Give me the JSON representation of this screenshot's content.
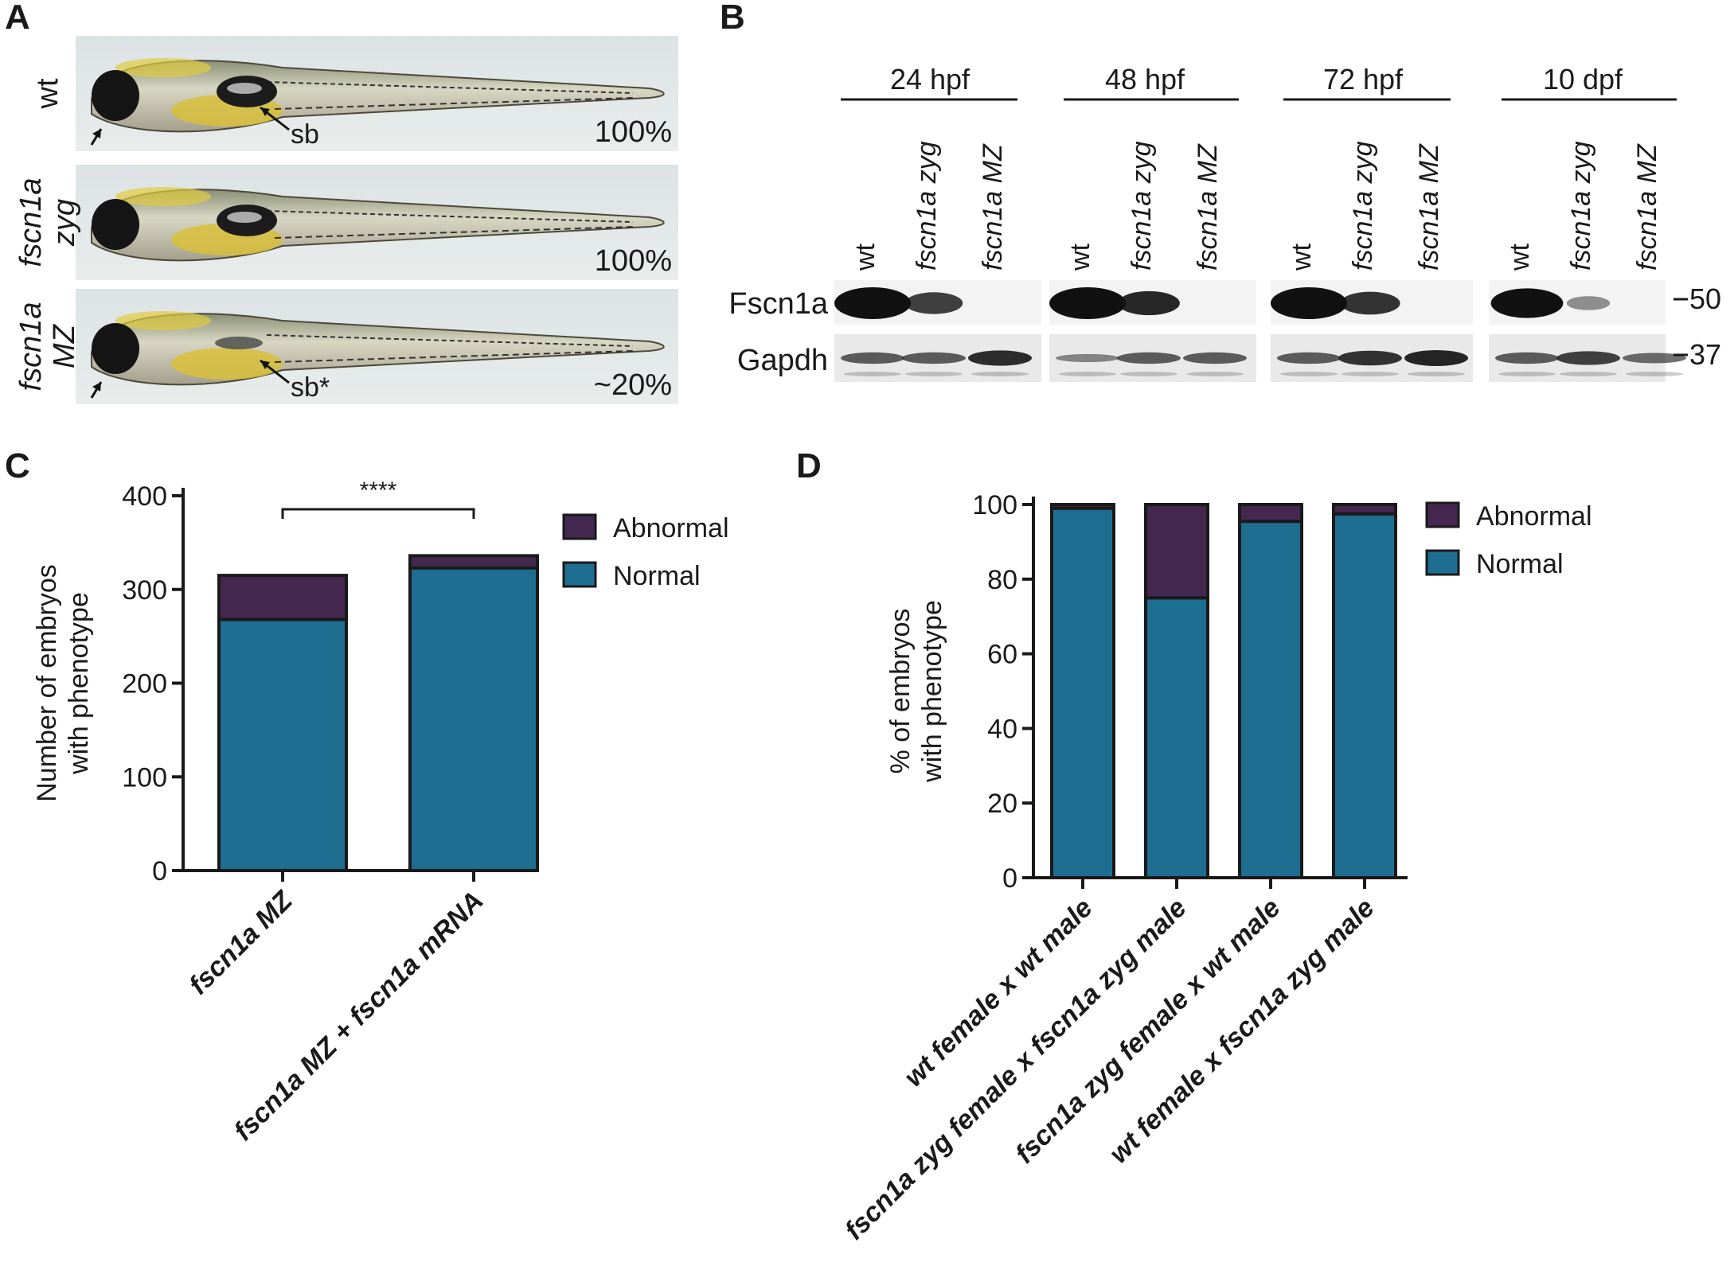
{
  "panels": {
    "a": "A",
    "b": "B",
    "c": "C",
    "d": "D"
  },
  "panel_a": {
    "rows": [
      {
        "genotype_lines": [
          "wt"
        ],
        "italic": false,
        "percent": "100%",
        "sb_label": "sb"
      },
      {
        "genotype_lines": [
          "fscn1a",
          "zyg"
        ],
        "italic": true,
        "percent": "100%",
        "sb_label": ""
      },
      {
        "genotype_lines": [
          "fscn1a",
          "MZ"
        ],
        "italic": true,
        "percent": "~20%",
        "sb_label": "sb*"
      }
    ]
  },
  "panel_b": {
    "timepoints": [
      "24 hpf",
      "48 hpf",
      "72 hpf",
      "10 dpf"
    ],
    "lanes": [
      "wt",
      "fscn1a zyg",
      "fscn1a MZ"
    ],
    "proteins": [
      "Fscn1a",
      "Gapdh"
    ],
    "markers": [
      "50",
      "37"
    ],
    "fscn1a_intensity": [
      [
        1.0,
        0.55,
        0.0
      ],
      [
        1.0,
        0.65,
        0.0
      ],
      [
        1.0,
        0.6,
        0.0
      ],
      [
        0.9,
        0.2,
        0.0
      ]
    ],
    "gapdh_intensity": [
      [
        0.6,
        0.6,
        0.95
      ],
      [
        0.3,
        0.6,
        0.6
      ],
      [
        0.6,
        0.9,
        1.0
      ],
      [
        0.6,
        0.8,
        0.5
      ]
    ]
  },
  "colors": {
    "normal": "#1e6e92",
    "abnormal": "#44284f",
    "axis": "#1a1a1a"
  },
  "chart_data": [
    {
      "panel": "C",
      "type": "bar",
      "stacked": true,
      "categories": [
        "fscn1a MZ",
        "fscn1a MZ + fscn1a mRNA"
      ],
      "series": [
        {
          "name": "Normal",
          "values": [
            268,
            323
          ]
        },
        {
          "name": "Abnormal",
          "values": [
            47,
            13
          ]
        }
      ],
      "ylabel_lines": [
        "Number of embryos",
        "with phenotype"
      ],
      "ylim": [
        0,
        400
      ],
      "yticks": [
        "0",
        "100",
        "200",
        "300",
        "400"
      ],
      "significance": "****",
      "legend": [
        "Abnormal",
        "Normal"
      ],
      "legend_position": "top-right"
    },
    {
      "panel": "D",
      "type": "bar",
      "stacked": true,
      "categories": [
        "wt female x wt male",
        "fscn1a zyg female x fscn1a zyg male",
        "fscn1a zyg female x wt male",
        "wt female x fscn1a zyg male"
      ],
      "series": [
        {
          "name": "Normal",
          "values": [
            99,
            75,
            95.5,
            97.5
          ]
        },
        {
          "name": "Abnormal",
          "values": [
            1,
            25,
            4.5,
            2.5
          ]
        }
      ],
      "ylabel_lines": [
        "% of embryos",
        "with phenotype"
      ],
      "ylim": [
        0,
        100
      ],
      "yticks": [
        "0",
        "20",
        "40",
        "60",
        "80",
        "100"
      ],
      "legend": [
        "Abnormal",
        "Normal"
      ],
      "legend_position": "top-right"
    }
  ]
}
